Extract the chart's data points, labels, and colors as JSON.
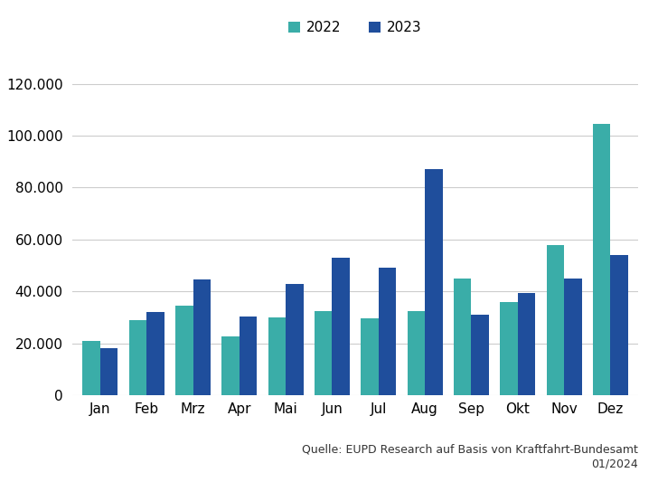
{
  "categories": [
    "Jan",
    "Feb",
    "Mrz",
    "Apr",
    "Mai",
    "Jun",
    "Jul",
    "Aug",
    "Sep",
    "Okt",
    "Nov",
    "Dez"
  ],
  "values_2022": [
    21000,
    29000,
    34500,
    22500,
    30000,
    32500,
    29500,
    32500,
    45000,
    36000,
    58000,
    104500
  ],
  "values_2023": [
    18000,
    32000,
    44500,
    30500,
    43000,
    53000,
    49000,
    87000,
    31000,
    39500,
    45000,
    54000
  ],
  "color_2022": "#3aada8",
  "color_2023": "#1f4e9c",
  "legend_labels": [
    "2022",
    "2023"
  ],
  "ylim": [
    0,
    130000
  ],
  "yticks": [
    0,
    20000,
    40000,
    60000,
    80000,
    100000,
    120000
  ],
  "source_line1": "Quelle: EUPD Research auf Basis von Kraftfahrt-Bundesamt",
  "source_line2": "01/2024",
  "background_color": "#ffffff",
  "grid_color": "#cccccc",
  "bar_width": 0.38
}
